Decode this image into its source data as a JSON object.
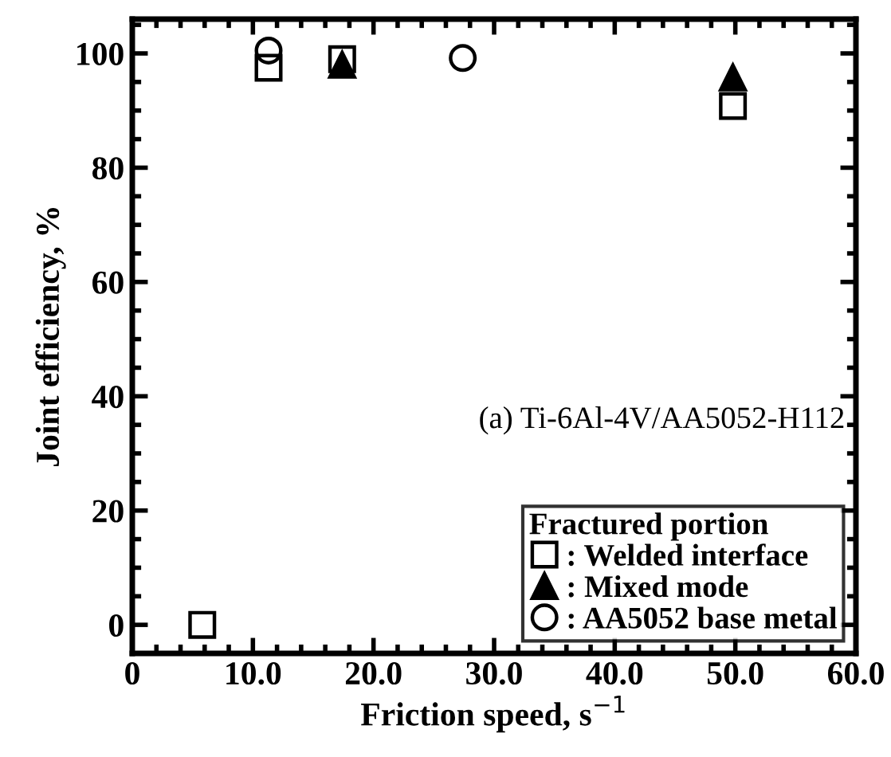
{
  "chart_data": {
    "type": "scatter",
    "xlabel": "Friction speed, s$^{−1}$",
    "ylabel": "Joint efficiency, %",
    "legend_title": "Fractured portion",
    "annotations": [
      "(a) Ti-6Al-4V/AA5052-H112"
    ],
    "xlim": [
      0,
      60
    ],
    "ylim": [
      -5,
      106
    ],
    "xticks": [
      {
        "value": 0,
        "label": "0"
      },
      {
        "value": 10,
        "label": "10.0"
      },
      {
        "value": 20,
        "label": "20.0"
      },
      {
        "value": 30,
        "label": "30.0"
      },
      {
        "value": 40,
        "label": "40.0"
      },
      {
        "value": 50,
        "label": "50.0"
      },
      {
        "value": 60,
        "label": "60.0"
      }
    ],
    "yticks": [
      0,
      20,
      40,
      60,
      80,
      100
    ],
    "grid": false,
    "legend": "bottom right",
    "series": [
      {
        "name": ": Welded interface",
        "color": "#000000",
        "marker": "square",
        "x": [
          5.8,
          11.3,
          17.4,
          49.8
        ],
        "values": [
          0,
          97.5,
          99,
          90.8
        ]
      },
      {
        "name": ": Mixed mode",
        "color": "#000000",
        "marker": "triangle",
        "x": [
          17.4,
          49.8
        ],
        "values": [
          98,
          95.8
        ]
      },
      {
        "name": ": AA5052 base metal",
        "color": "#000000",
        "marker": "circle",
        "x": [
          11.3,
          27.4
        ],
        "values": [
          100.5,
          99.2
        ]
      }
    ]
  }
}
